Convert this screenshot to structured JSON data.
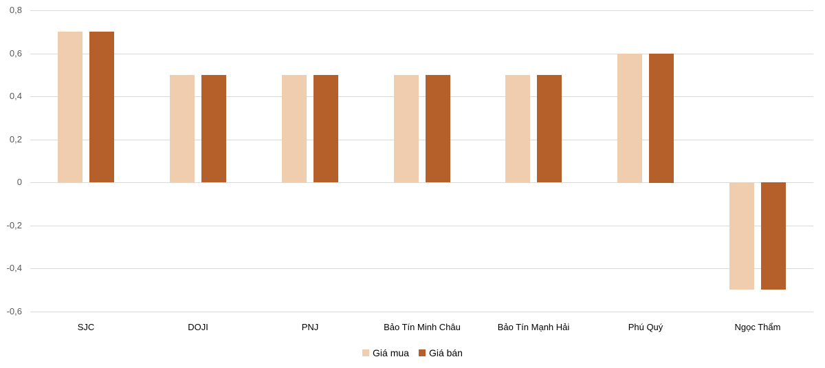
{
  "chart_data": {
    "type": "bar",
    "title": "",
    "xlabel": "",
    "ylabel": "",
    "ylim": [
      -0.6,
      0.8
    ],
    "yticks": [
      "0,8",
      "0,6",
      "0,4",
      "0,2",
      "0",
      "-0,2",
      "-0,4",
      "-0,6"
    ],
    "ytick_values": [
      0.8,
      0.6,
      0.4,
      0.2,
      0,
      -0.2,
      -0.4,
      -0.6
    ],
    "grid": true,
    "legend_position": "bottom",
    "categories": [
      "SJC",
      "DOJI",
      "PNJ",
      "Bảo Tín Minh Châu",
      "Bảo Tín Mạnh Hải",
      "Phú Quý",
      "Ngọc Thẩm"
    ],
    "series": [
      {
        "name": "Giá mua",
        "color": "#F1CDB0",
        "values": [
          0.7,
          0.5,
          0.5,
          0.5,
          0.5,
          0.6,
          -0.5
        ]
      },
      {
        "name": "Giá bán",
        "color": "#B5602A",
        "values": [
          0.7,
          0.5,
          0.5,
          0.5,
          0.5,
          0.6,
          -0.5
        ]
      }
    ]
  }
}
